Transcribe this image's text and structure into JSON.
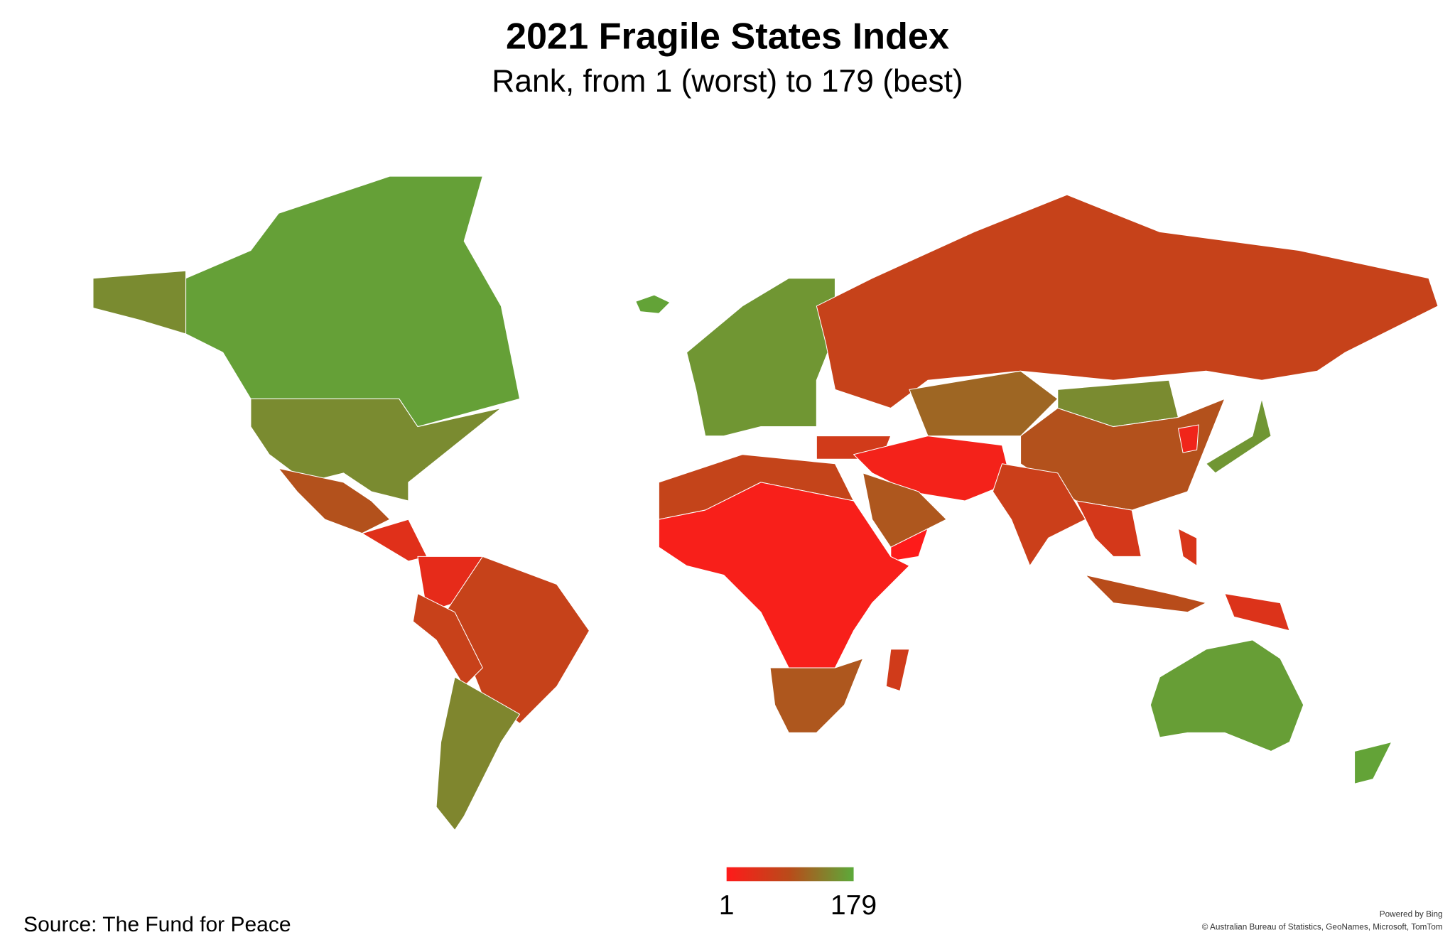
{
  "header": {
    "title": "2021 Fragile States Index",
    "subtitle": "Rank, from 1 (worst) to 179 (best)"
  },
  "map": {
    "legend": {
      "min": 1,
      "max": 179,
      "colors": [
        "#ff1a1a",
        "#b84c1a",
        "#5caa3a"
      ]
    },
    "values": [
      170,
      150,
      150,
      95,
      40,
      32,
      72,
      70,
      145,
      160,
      172,
      73,
      115,
      150,
      95,
      59,
      15,
      100,
      2,
      66,
      55,
      90,
      50,
      45,
      160,
      20,
      75,
      10,
      100,
      60,
      168,
      172
    ]
  },
  "footer": {
    "source": "Source: The Fund for Peace",
    "powered": "Powered by Bing",
    "credits": "© Australian Bureau of Statistics, GeoNames, Microsoft, TomTom"
  }
}
